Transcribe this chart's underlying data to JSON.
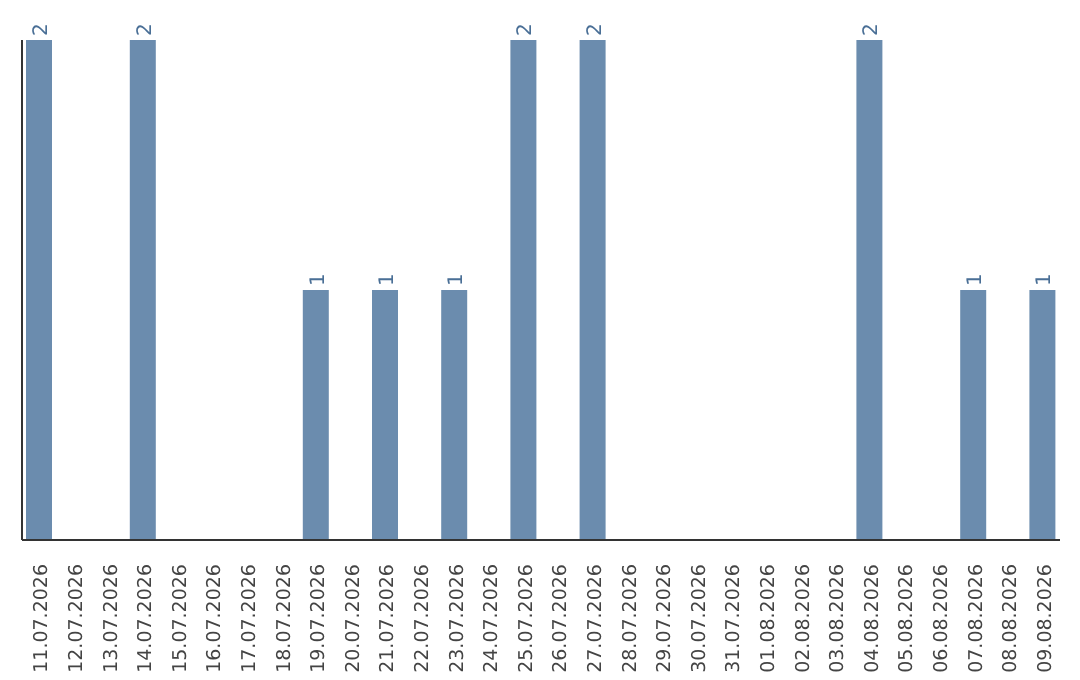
{
  "chart_data": {
    "type": "bar",
    "categories": [
      "11.07.2026",
      "12.07.2026",
      "13.07.2026",
      "14.07.2026",
      "15.07.2026",
      "16.07.2026",
      "17.07.2026",
      "18.07.2026",
      "19.07.2026",
      "20.07.2026",
      "21.07.2026",
      "22.07.2026",
      "23.07.2026",
      "24.07.2026",
      "25.07.2026",
      "26.07.2026",
      "27.07.2026",
      "28.07.2026",
      "29.07.2026",
      "30.07.2026",
      "31.07.2026",
      "01.08.2026",
      "02.08.2026",
      "03.08.2026",
      "04.08.2026",
      "05.08.2026",
      "06.08.2026",
      "07.08.2026",
      "08.08.2026",
      "09.08.2026"
    ],
    "values": [
      2,
      0,
      0,
      2,
      0,
      0,
      0,
      0,
      1,
      0,
      1,
      0,
      1,
      0,
      2,
      0,
      2,
      0,
      0,
      0,
      0,
      0,
      0,
      0,
      2,
      0,
      0,
      1,
      0,
      1
    ],
    "value_labels": [
      "2",
      null,
      null,
      "2",
      null,
      null,
      null,
      null,
      "1",
      null,
      "1",
      null,
      "1",
      null,
      "2",
      null,
      "2",
      null,
      null,
      null,
      null,
      null,
      null,
      null,
      "2",
      null,
      null,
      "1",
      null,
      "1"
    ],
    "color": "#6b8cae"
  }
}
